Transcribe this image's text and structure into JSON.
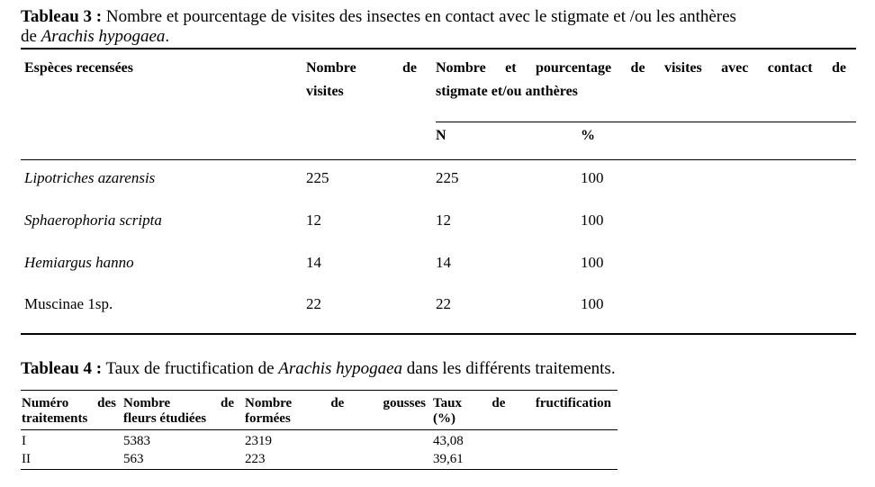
{
  "table3": {
    "caption_label": "Tableau 3 :",
    "caption_text": " Nombre et pourcentage de visites des insectes en contact avec le stigmate et /ou les anthères",
    "caption_line2_prefix": "de ",
    "caption_species": "Arachis hypogaea",
    "caption_end": ".",
    "headers": {
      "species": "Espèces recensées",
      "visits_w1": "Nombre",
      "visits_w2": "de",
      "visits_line2": "visites",
      "contact_words": [
        "Nombre",
        "et",
        "pourcentage",
        "de",
        "visites",
        "avec",
        "contact",
        "de"
      ],
      "contact_line2": "stigmate et/ou anthères",
      "n": "N",
      "pct": "%"
    },
    "rows": [
      {
        "species": "Lipotriches azarensis",
        "visits": "225",
        "n": "225",
        "pct": "100",
        "italic": true
      },
      {
        "species": "Sphaerophoria scripta",
        "visits": "12",
        "n": "12",
        "pct": "100",
        "italic": true
      },
      {
        "species": "Hemiargus hanno",
        "visits": "14",
        "n": "14",
        "pct": "100",
        "italic": true
      },
      {
        "species": "Muscinae 1sp.",
        "visits": "22",
        "n": "22",
        "pct": "100",
        "italic": false
      }
    ]
  },
  "table4": {
    "caption_label": "Tableau 4 :",
    "caption_text": " Taux de fructification de ",
    "caption_species": "Arachis hypogaea",
    "caption_end": " dans les différents traitements.",
    "headers": {
      "col1_l1": [
        "Numéro",
        "des"
      ],
      "col1_l2": "traitements",
      "col2_l1": [
        "Nombre",
        "de"
      ],
      "col2_l2": "fleurs étudiées",
      "col3_l1": [
        "Nombre",
        "de",
        "gousses"
      ],
      "col3_l2": "formées",
      "col4_l1": [
        "Taux",
        "de",
        "fructification"
      ],
      "col4_l2": "(%)"
    },
    "rows": [
      {
        "treatment": "I",
        "flowers": "5383",
        "pods": "2319",
        "rate": "43,08"
      },
      {
        "treatment": "II",
        "flowers": "563",
        "pods": "223",
        "rate": "39,61"
      }
    ]
  }
}
